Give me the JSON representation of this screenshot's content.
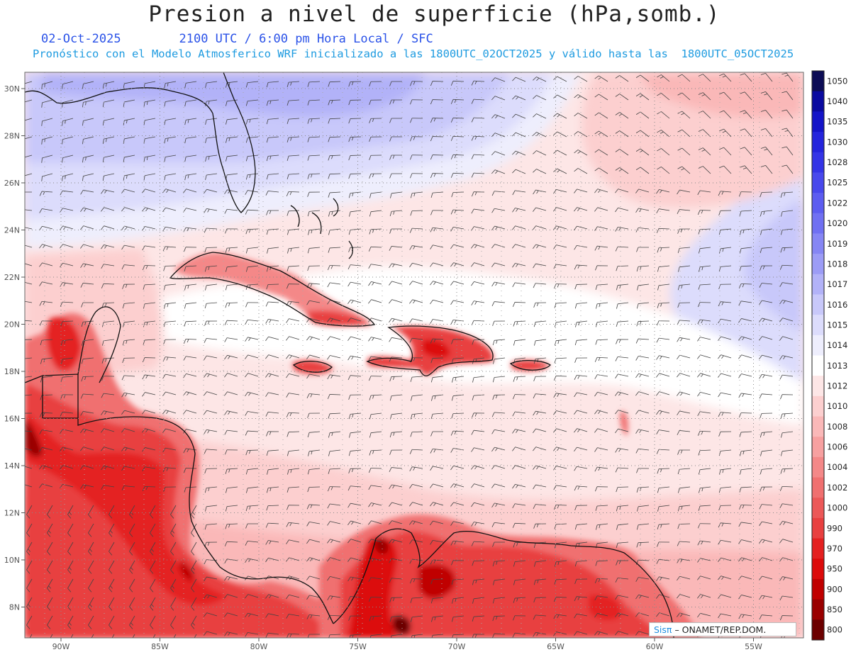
{
  "header": {
    "title": "Presion a nivel de superficie (hPa,somb.)",
    "date": "02-Oct-2025",
    "time_info": "2100 UTC / 6:00 pm Hora Local / SFC",
    "model_info": "Pronóstico con el Modelo Atmosferico WRF inicializado a las 1800UTC_02OCT2025 y válido hasta las  1800UTC_05OCT2025"
  },
  "map": {
    "lat_labels": [
      "30N",
      "28N",
      "26N",
      "24N",
      "22N",
      "20N",
      "18N",
      "16N",
      "14N",
      "12N",
      "10N",
      "8N"
    ],
    "lon_labels": [
      "90W",
      "85W",
      "80W",
      "75W",
      "70W",
      "65W",
      "60W",
      "55W"
    ]
  },
  "colorbar": {
    "levels": [
      "1050",
      "1040",
      "1035",
      "1030",
      "1028",
      "1025",
      "1022",
      "1020",
      "1019",
      "1018",
      "1017",
      "1016",
      "1015",
      "1014",
      "1013",
      "1012",
      "1010",
      "1008",
      "1006",
      "1004",
      "1002",
      "1000",
      "990",
      "970",
      "950",
      "900",
      "850",
      "800"
    ],
    "colors": [
      "#0c0c55",
      "#0a0aa0",
      "#1414c8",
      "#2424dc",
      "#3434e6",
      "#4848ec",
      "#5c5cf0",
      "#7070f2",
      "#8686f4",
      "#9c9cf6",
      "#b2b2f8",
      "#c8c8fa",
      "#dcdcfc",
      "#eeeefd",
      "#ffffff",
      "#fde6e6",
      "#fccfcf",
      "#fab8b8",
      "#f7a0a0",
      "#f48888",
      "#f07070",
      "#ec5858",
      "#e84040",
      "#e42020",
      "#dc0a0a",
      "#c00000",
      "#9a0000",
      "#6c0000"
    ]
  },
  "credit": {
    "brand": "Sisπ",
    "text": "– ONAMET/REP.DOM."
  }
}
